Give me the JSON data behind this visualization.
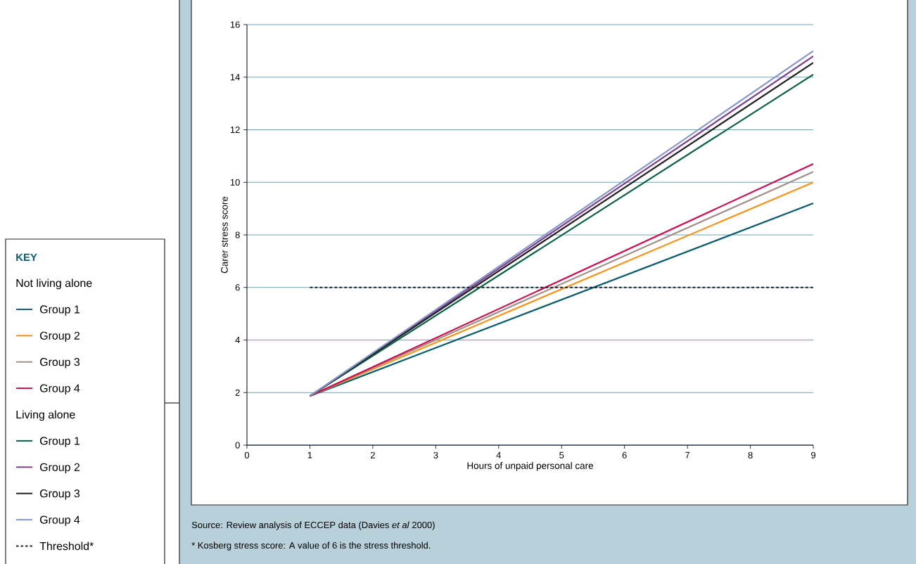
{
  "chart_data": {
    "type": "line",
    "xlabel": "Hours of unpaid personal care",
    "ylabel": "Carer stress score",
    "legend_title": "KEY",
    "xlim": [
      0,
      9
    ],
    "ylim": [
      0,
      16
    ],
    "xticks": [
      0,
      1,
      2,
      3,
      4,
      5,
      6,
      7,
      8,
      9
    ],
    "yticks": [
      0,
      2,
      4,
      6,
      8,
      10,
      12,
      14,
      16
    ],
    "grid": "y",
    "legend": "left",
    "x": [
      1,
      9
    ],
    "series": [
      {
        "name": "Group 1",
        "color": "#0e5d6e",
        "values": [
          1.87,
          9.2
        ]
      },
      {
        "name": "Group 2",
        "color": "#f7941d",
        "values": [
          1.87,
          10.0
        ]
      },
      {
        "name": "Group 3",
        "color": "#a09088",
        "values": [
          1.87,
          10.4
        ]
      },
      {
        "name": "Group 4",
        "color": "#cc0e4f",
        "values": [
          1.87,
          10.7
        ]
      },
      {
        "name": "Group 1",
        "color": "#0a6045",
        "values": [
          1.87,
          14.1
        ]
      },
      {
        "name": "Group 2",
        "color": "#7b3f8c",
        "values": [
          1.87,
          14.8
        ]
      },
      {
        "name": "Group 3",
        "color": "#231f20",
        "values": [
          1.87,
          14.55
        ]
      },
      {
        "name": "Group 4",
        "color": "#8896cc",
        "values": [
          1.87,
          15.0
        ]
      },
      {
        "name": "Threshold*",
        "color": "#231f20",
        "line_style": "dashed",
        "values": [
          6,
          6
        ]
      }
    ],
    "annotations": [
      "Source: Review analysis of ECCEP data (Davies *et al* 2000)",
      "* Kosberg stress score: A value of 6 is the stress threshold.",
      "Not living alone",
      "Living alone"
    ]
  }
}
